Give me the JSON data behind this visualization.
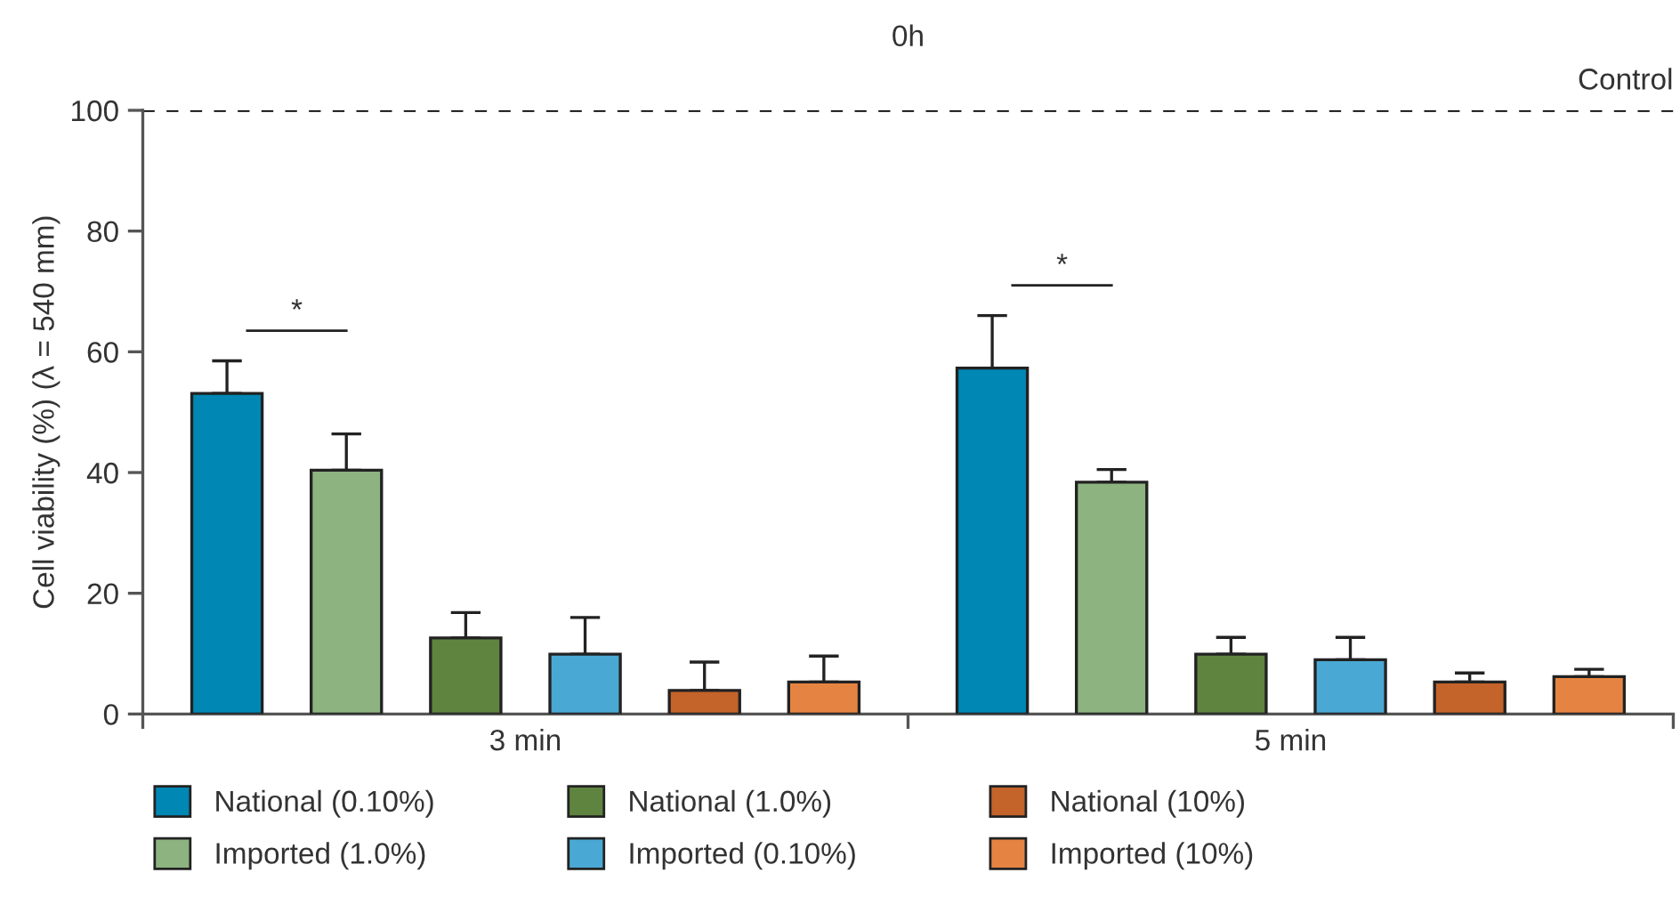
{
  "chart_data": {
    "type": "bar",
    "title": "0h",
    "ylabel": "Cell viability (%) (λ = 540 mm)",
    "categories": [
      "3 min",
      "5 min"
    ],
    "series": [
      {
        "name": "National (0.10%)",
        "color": "#0087b3",
        "values": [
          53.1,
          57.3
        ],
        "errors": [
          [
            53.1,
            58.5
          ],
          [
            57.3,
            66.0
          ]
        ]
      },
      {
        "name": "Imported (1.0%)",
        "color": "#8db381",
        "values": [
          40.4,
          38.4
        ],
        "errors": [
          [
            40.4,
            46.4
          ],
          [
            38.4,
            40.5
          ]
        ]
      },
      {
        "name": "National (1.0%)",
        "color": "#5f8440",
        "values": [
          12.6,
          9.9
        ],
        "errors": [
          [
            12.6,
            16.8
          ],
          [
            9.9,
            12.7
          ]
        ]
      },
      {
        "name": "Imported (0.10%)",
        "color": "#4aa8d4",
        "values": [
          9.9,
          9.0
        ],
        "errors": [
          [
            9.9,
            16.0
          ],
          [
            9.0,
            12.7
          ]
        ]
      },
      {
        "name": "National (10%)",
        "color": "#c4632a",
        "values": [
          3.9,
          5.3
        ],
        "errors": [
          [
            3.9,
            8.6
          ],
          [
            5.3,
            6.8
          ]
        ]
      },
      {
        "name": "Imported (10%)",
        "color": "#e58442",
        "values": [
          5.3,
          6.2
        ],
        "errors": [
          [
            5.3,
            9.6
          ],
          [
            6.2,
            7.4
          ]
        ]
      }
    ],
    "ylim": [
      0,
      100
    ],
    "yticks": [
      0,
      20,
      40,
      60,
      80,
      100
    ],
    "ref_lines": [
      {
        "axis": "y",
        "value": 100,
        "label": "Control",
        "color": "#000000",
        "line_style": "dashed"
      }
    ],
    "annotations": [
      "*",
      "*"
    ],
    "legend": "bottom",
    "grid": false
  }
}
